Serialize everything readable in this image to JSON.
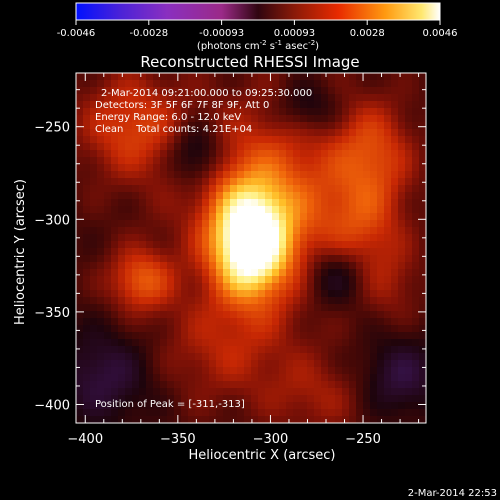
{
  "chart_data": {
    "type": "heatmap",
    "title": "Reconstructed RHESSI Image",
    "xlabel": "Heliocentric X (arcsec)",
    "ylabel": "Heliocentric Y (arcsec)",
    "xlim": [
      -405,
      -216
    ],
    "ylim": [
      -410,
      -221
    ],
    "xticks": [
      -400,
      -350,
      -300,
      -250
    ],
    "yticks": [
      -250,
      -300,
      -350,
      -400
    ],
    "colorbar": {
      "min": -0.0046,
      "max": 0.0046,
      "ticks": [
        "-0.0046",
        "-0.0028",
        "-0.00093",
        "0.00093",
        "0.0028",
        "0.0046"
      ],
      "label_prefix": "(photons cm",
      "label_sup1": "-2",
      "label_mid": " s",
      "label_sup2": "-1",
      "label_mid2": " asec",
      "label_sup3": "-2",
      "label_suffix": ")"
    },
    "annotations": {
      "time_range": "2-Mar-2014 09:21:00.000 to 09:25:30.000",
      "detectors": "Detectors: 3F 5F 6F 7F 8F 9F, Att 0",
      "energy": "Energy Range: 6.0 - 12.0 keV",
      "clean": "Clean    Total counts: 4.21E+04",
      "peak": "Position of Peak = [-311,-313]"
    },
    "peak": {
      "x": -311,
      "y": -313
    },
    "sources": [
      {
        "x": -311,
        "y": -313,
        "amp": 1.0,
        "sx": 14,
        "sy": 20
      },
      {
        "x": -300,
        "y": -290,
        "amp": 0.45,
        "sx": 30,
        "sy": 35
      },
      {
        "x": -370,
        "y": -333,
        "amp": 0.42,
        "sx": 12,
        "sy": 12
      },
      {
        "x": -375,
        "y": -250,
        "amp": 0.35,
        "sx": 20,
        "sy": 20
      },
      {
        "x": -245,
        "y": -265,
        "amp": 0.35,
        "sx": 15,
        "sy": 20
      },
      {
        "x": -250,
        "y": -305,
        "amp": 0.25,
        "sx": 15,
        "sy": 18
      },
      {
        "x": -325,
        "y": -370,
        "amp": 0.22,
        "sx": 25,
        "sy": 20
      },
      {
        "x": -275,
        "y": -395,
        "amp": 0.18,
        "sx": 20,
        "sy": 15
      },
      {
        "x": -235,
        "y": -335,
        "amp": 0.15,
        "sx": 12,
        "sy": 15
      }
    ],
    "dark_regions": [
      {
        "x": -340,
        "y": -265,
        "amp": 0.35,
        "sx": 10,
        "sy": 12
      },
      {
        "x": -265,
        "y": -330,
        "amp": 0.3,
        "sx": 12,
        "sy": 12
      },
      {
        "x": -390,
        "y": -385,
        "amp": 0.3,
        "sx": 18,
        "sy": 18
      },
      {
        "x": -280,
        "y": -240,
        "amp": 0.25,
        "sx": 12,
        "sy": 10
      },
      {
        "x": -230,
        "y": -385,
        "amp": 0.3,
        "sx": 15,
        "sy": 15
      }
    ]
  },
  "footer": {
    "timestamp": "2-Mar-2014 22:53"
  }
}
